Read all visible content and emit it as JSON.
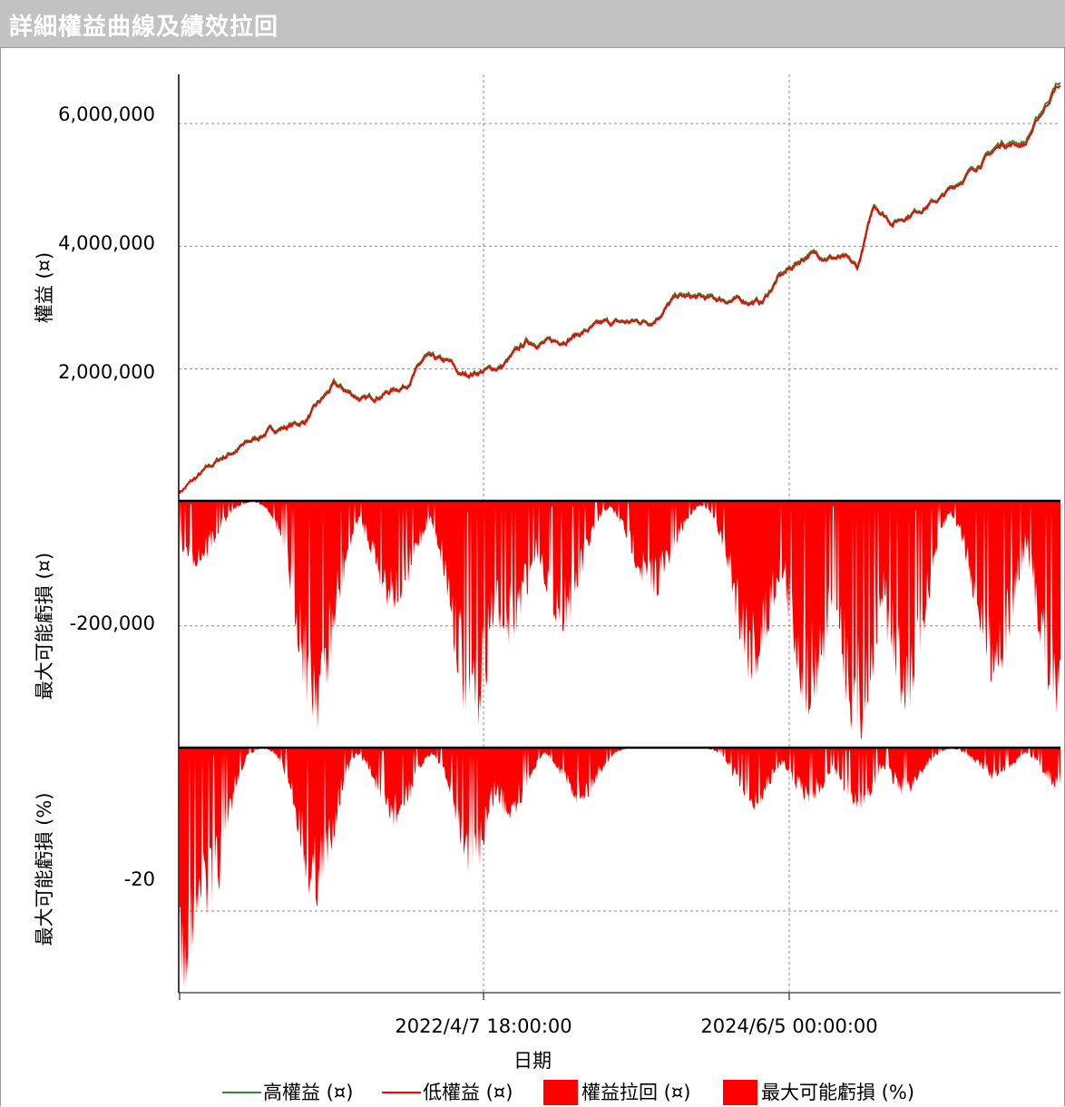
{
  "window": {
    "title": "詳細權益曲線及績效拉回"
  },
  "colors": {
    "high_equity": "#2e8b2e",
    "low_equity": "#ff0000",
    "drawdown": "#ff0000",
    "grid": "#8c8c8c"
  },
  "chart_data": {
    "type": "line+area",
    "xlabel": "日期",
    "x_ticks": [
      "2022/4/7 18:00:00",
      "2024/6/5 00:00:00"
    ],
    "x_range": [
      "2020/5/20",
      "2026/6/30"
    ],
    "grid": true,
    "legend_position": "bottom",
    "legend": [
      {
        "name": "高權益 (¤)",
        "type": "line",
        "color": "#2e8b2e"
      },
      {
        "name": "低權益 (¤)",
        "type": "line",
        "color": "#ff0000"
      },
      {
        "name": "權益拉回 (¤)",
        "type": "area",
        "color": "#ff0000"
      },
      {
        "name": "最大可能虧損 (%)",
        "type": "area",
        "color": "#ff0000"
      }
    ],
    "panels": [
      {
        "ylabel": "權益 (¤)",
        "y_ticks": [
          "6,000,000",
          "4,000,000",
          "2,000,000"
        ],
        "ylim": [
          -150000,
          6800000
        ],
        "series": [
          {
            "name": "高權益 (¤)",
            "approx_points": [
              [
                "2020/5/20",
                0
              ],
              [
                "2020/9/1",
                550000
              ],
              [
                "2021/1/1",
                1000000
              ],
              [
                "2021/4/1",
                1150000
              ],
              [
                "2021/6/15",
                1750000
              ],
              [
                "2021/9/1",
                1500000
              ],
              [
                "2021/12/15",
                1750000
              ],
              [
                "2022/2/1",
                2200000
              ],
              [
                "2022/4/7",
                2100000
              ],
              [
                "2022/5/1",
                1900000
              ],
              [
                "2022/8/15",
                2050000
              ],
              [
                "2022/10/15",
                2450000
              ],
              [
                "2023/1/1",
                2450000
              ],
              [
                "2023/5/1",
                2750000
              ],
              [
                "2023/9/1",
                2800000
              ],
              [
                "2023/11/1",
                3200000
              ],
              [
                "2024/6/5",
                3100000
              ],
              [
                "2024/7/15",
                3500000
              ],
              [
                "2024/10/1",
                3900000
              ],
              [
                "2025/1/1",
                3800000
              ],
              [
                "2025/2/1",
                3650000
              ],
              [
                "2025/3/15",
                4700000
              ],
              [
                "2025/5/1",
                4400000
              ],
              [
                "2025/9/1",
                4800000
              ],
              [
                "2026/2/1",
                5700000
              ],
              [
                "2026/4/1",
                5700000
              ],
              [
                "2026/6/20",
                6650000
              ]
            ]
          },
          {
            "name": "低權益 (¤)",
            "approx_points": [
              [
                "2020/5/20",
                0
              ],
              [
                "2020/9/1",
                530000
              ],
              [
                "2021/1/1",
                980000
              ],
              [
                "2021/4/1",
                1130000
              ],
              [
                "2021/6/15",
                1720000
              ],
              [
                "2021/9/1",
                1480000
              ],
              [
                "2021/12/15",
                1730000
              ],
              [
                "2022/2/1",
                2170000
              ],
              [
                "2022/4/7",
                2080000
              ],
              [
                "2022/5/1",
                1880000
              ],
              [
                "2022/8/15",
                2030000
              ],
              [
                "2022/10/15",
                2420000
              ],
              [
                "2023/1/1",
                2430000
              ],
              [
                "2023/5/1",
                2730000
              ],
              [
                "2023/9/1",
                2780000
              ],
              [
                "2023/11/1",
                3170000
              ],
              [
                "2024/6/5",
                3080000
              ],
              [
                "2024/7/15",
                3470000
              ],
              [
                "2024/10/1",
                3870000
              ],
              [
                "2025/1/1",
                3780000
              ],
              [
                "2025/2/1",
                3620000
              ],
              [
                "2025/3/15",
                4670000
              ],
              [
                "2025/5/1",
                4380000
              ],
              [
                "2025/9/1",
                4780000
              ],
              [
                "2026/2/1",
                5660000
              ],
              [
                "2026/4/1",
                5660000
              ],
              [
                "2026/6/20",
                6600000
              ]
            ]
          }
        ]
      },
      {
        "ylabel": "最大可能虧損 (¤)",
        "y_ticks": [
          "-200,000"
        ],
        "ylim": [
          -395000,
          0
        ],
        "series": [
          {
            "name": "權益拉回 (¤)",
            "approx_peaks": [
              [
                "2020/7/1",
                -110000
              ],
              [
                "2021/5/1",
                -370000
              ],
              [
                "2021/11/15",
                -180000
              ],
              [
                "2022/6/1",
                -380000
              ],
              [
                "2022/9/1",
                -240000
              ],
              [
                "2023/1/15",
                -210000
              ],
              [
                "2023/9/1",
                -160000
              ],
              [
                "2024/5/15",
                -300000
              ],
              [
                "2024/10/1",
                -350000
              ],
              [
                "2025/2/1",
                -390000
              ],
              [
                "2025/6/1",
                -350000
              ],
              [
                "2026/1/15",
                -300000
              ],
              [
                "2026/6/25",
                -370000
              ]
            ]
          }
        ]
      },
      {
        "ylabel": "最大可能虧損 (%)",
        "y_ticks": [
          "-20"
        ],
        "ylim": [
          -30,
          0
        ],
        "series": [
          {
            "name": "最大可能虧損 (%)",
            "approx_peaks": [
              [
                "2020/5/28",
                -30
              ],
              [
                "2020/8/1",
                -22
              ],
              [
                "2021/5/1",
                -20
              ],
              [
                "2021/11/15",
                -10
              ],
              [
                "2022/6/1",
                -16
              ],
              [
                "2022/9/1",
                -9
              ],
              [
                "2023/3/1",
                -7
              ],
              [
                "2024/5/15",
                -8
              ],
              [
                "2024/10/1",
                -7
              ],
              [
                "2025/2/1",
                -8
              ],
              [
                "2025/6/1",
                -6
              ],
              [
                "2026/1/15",
                -4
              ],
              [
                "2026/6/25",
                -5
              ]
            ]
          }
        ]
      }
    ]
  }
}
